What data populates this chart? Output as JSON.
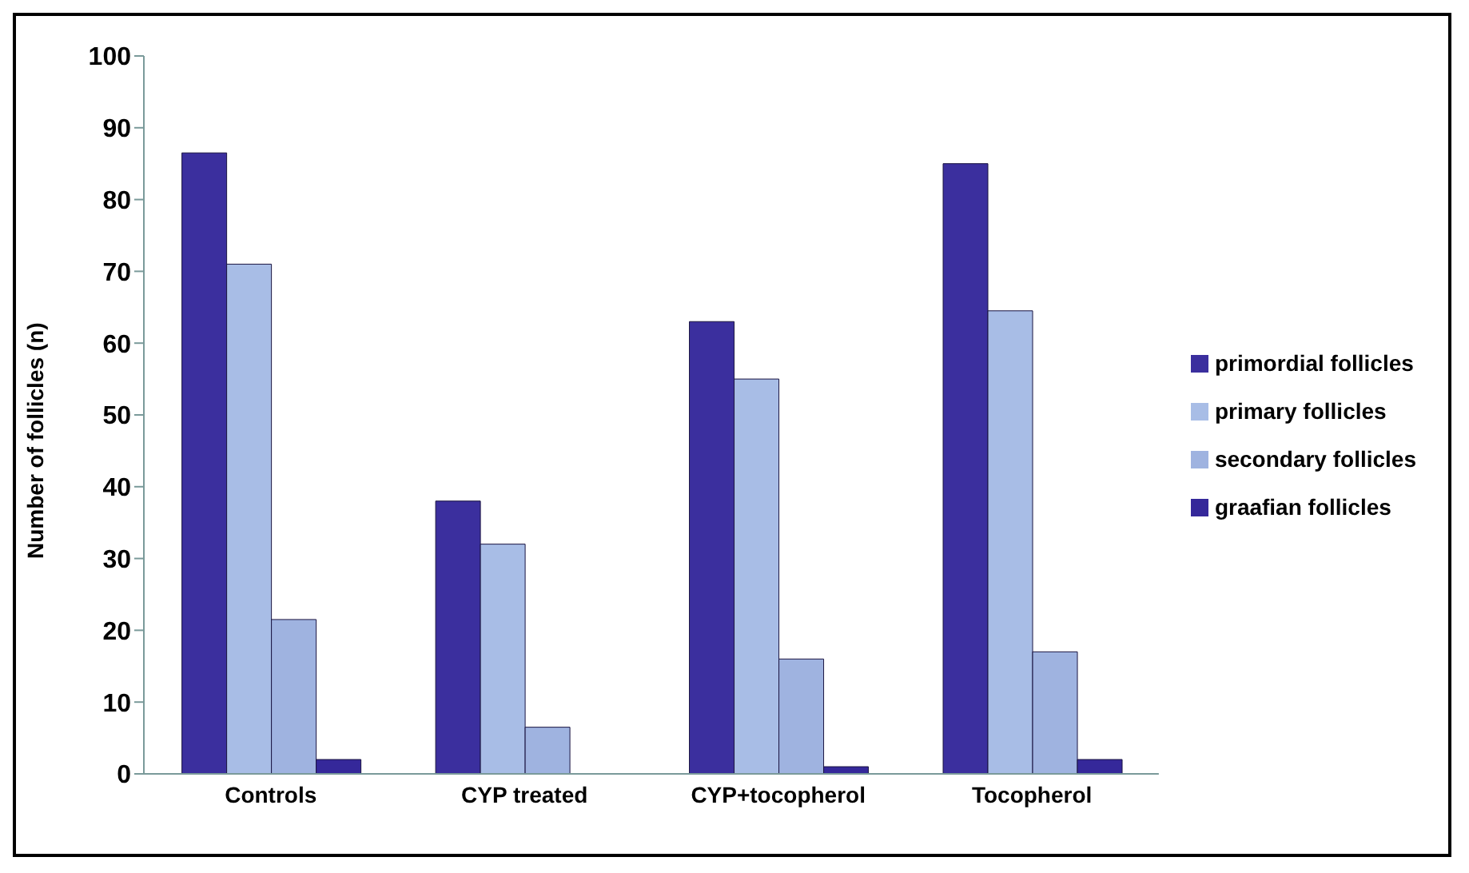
{
  "chart_data": {
    "type": "bar",
    "ylabel": "Number of follicles (n)",
    "categories": [
      "Controls",
      "CYP treated",
      "CYP+tocopherol",
      "Tocopherol"
    ],
    "series": [
      {
        "name": "primordial follicles",
        "color": "#3b2f9e",
        "values": [
          86.5,
          38,
          63,
          85
        ]
      },
      {
        "name": "primary follicles",
        "color": "#a8bde6",
        "values": [
          71,
          32,
          55,
          64.5
        ]
      },
      {
        "name": "secondary follicles",
        "color": "#9fb3e0",
        "values": [
          21.5,
          6.5,
          16,
          17
        ]
      },
      {
        "name": "graafian follicles",
        "color": "#35289a",
        "values": [
          2,
          0,
          1,
          2
        ]
      }
    ],
    "ylim": [
      0,
      100
    ],
    "yticks": [
      0,
      10,
      20,
      30,
      40,
      50,
      60,
      70,
      80,
      90,
      100
    ],
    "grid": false,
    "legend": "right"
  }
}
